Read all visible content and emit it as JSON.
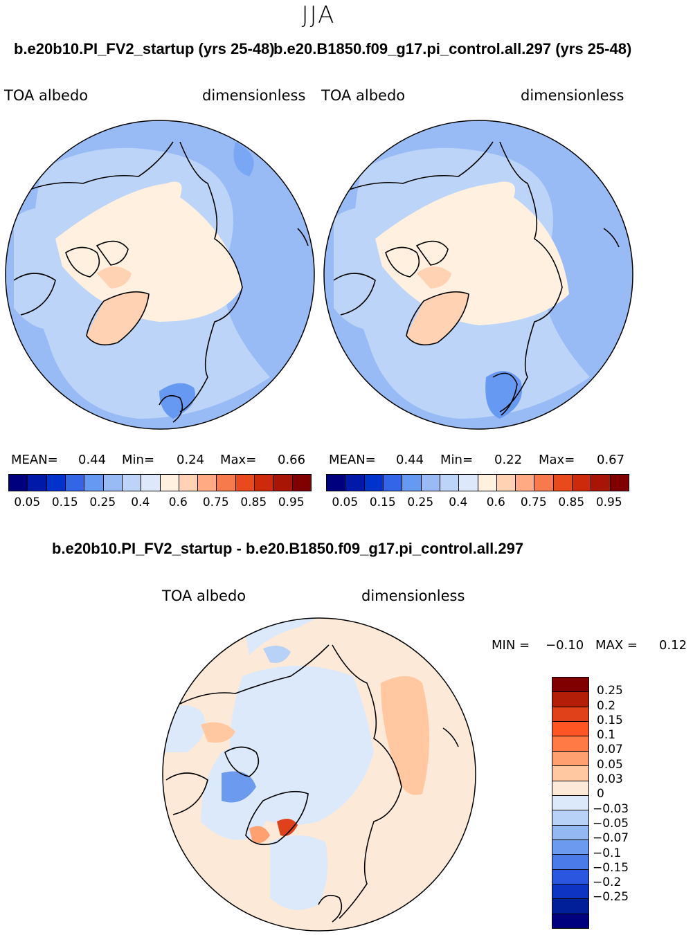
{
  "figure": {
    "season": "JJA",
    "left_title": "b.e20b10.PI_FV2_startup (yrs 25-48)",
    "right_title": "b.e20.B1850.f09_g17.pi_control.all.297 (yrs 25-48)",
    "diff_title": "b.e20b10.PI_FV2_startup - b.e20.B1850.f09_g17.pi_control.all.297"
  },
  "left_panel": {
    "variable": "TOA  albedo",
    "units": "dimensionless",
    "mean_label": "MEAN=",
    "mean": "0.44",
    "min_label": "Min=",
    "min": "0.24",
    "max_label": "Max=",
    "max": "0.66"
  },
  "right_panel": {
    "variable": "TOA  albedo",
    "units": "dimensionless",
    "mean_label": "MEAN=",
    "mean": "0.44",
    "min_label": "Min=",
    "min": "0.22",
    "max_label": "Max=",
    "max": "0.67"
  },
  "diff_panel": {
    "variable": "TOA  albedo",
    "units": "dimensionless",
    "min_label": "MIN =",
    "min": "−0.10",
    "max_label": "MAX =",
    "max": "0.12"
  },
  "abs_colorbar": {
    "colors": [
      "#00007f",
      "#0019a8",
      "#0033cc",
      "#3366e6",
      "#6699f2",
      "#99bbf5",
      "#bcd4f7",
      "#dde9fb",
      "#fff0e0",
      "#ffd2b4",
      "#ffaa82",
      "#f77a4d",
      "#e84a1e",
      "#cc2a0a",
      "#a81504",
      "#800000"
    ],
    "ticks": [
      "0.05",
      "0.15",
      "0.25",
      "0.4",
      "0.6",
      "0.75",
      "0.85",
      "0.95"
    ]
  },
  "diff_colorbar": {
    "colors": [
      "#800000",
      "#b21e08",
      "#e0401a",
      "#ff5522",
      "#ff7a44",
      "#ffa070",
      "#ffc8a0",
      "#fde9d8",
      "#dbe9fb",
      "#b8d2f7",
      "#94b8f2",
      "#6c9aee",
      "#4a7be8",
      "#2a56e0",
      "#0d34c2",
      "#001f99",
      "#00007f"
    ],
    "ticks": [
      "0.25",
      "0.2",
      "0.15",
      "0.1",
      "0.07",
      "0.05",
      "0.03",
      "0",
      "−0.03",
      "−0.05",
      "−0.07",
      "−0.1",
      "−0.15",
      "−0.2",
      "−0.25"
    ]
  },
  "chart_data": [
    {
      "type": "heatmap",
      "title": "b.e20b10.PI_FV2_startup (yrs 25-48)",
      "projection": "north polar stereographic",
      "variable": "TOA albedo",
      "units": "dimensionless",
      "levels": [
        0.05,
        0.1,
        0.15,
        0.2,
        0.25,
        0.3,
        0.4,
        0.5,
        0.6,
        0.7,
        0.75,
        0.8,
        0.85,
        0.9,
        0.95
      ],
      "stats": {
        "mean": 0.44,
        "min": 0.24,
        "max": 0.66
      }
    },
    {
      "type": "heatmap",
      "title": "b.e20.B1850.f09_g17.pi_control.all.297 (yrs 25-48)",
      "projection": "north polar stereographic",
      "variable": "TOA albedo",
      "units": "dimensionless",
      "levels": [
        0.05,
        0.1,
        0.15,
        0.2,
        0.25,
        0.3,
        0.4,
        0.5,
        0.6,
        0.7,
        0.75,
        0.8,
        0.85,
        0.9,
        0.95
      ],
      "stats": {
        "mean": 0.44,
        "min": 0.22,
        "max": 0.67
      }
    },
    {
      "type": "heatmap",
      "title": "b.e20b10.PI_FV2_startup - b.e20.B1850.f09_g17.pi_control.all.297",
      "projection": "north polar stereographic",
      "variable": "TOA albedo",
      "units": "dimensionless",
      "levels": [
        -0.25,
        -0.2,
        -0.15,
        -0.1,
        -0.07,
        -0.05,
        -0.03,
        0,
        0.03,
        0.05,
        0.07,
        0.1,
        0.15,
        0.2,
        0.25
      ],
      "stats": {
        "min": -0.1,
        "max": 0.12
      }
    }
  ]
}
